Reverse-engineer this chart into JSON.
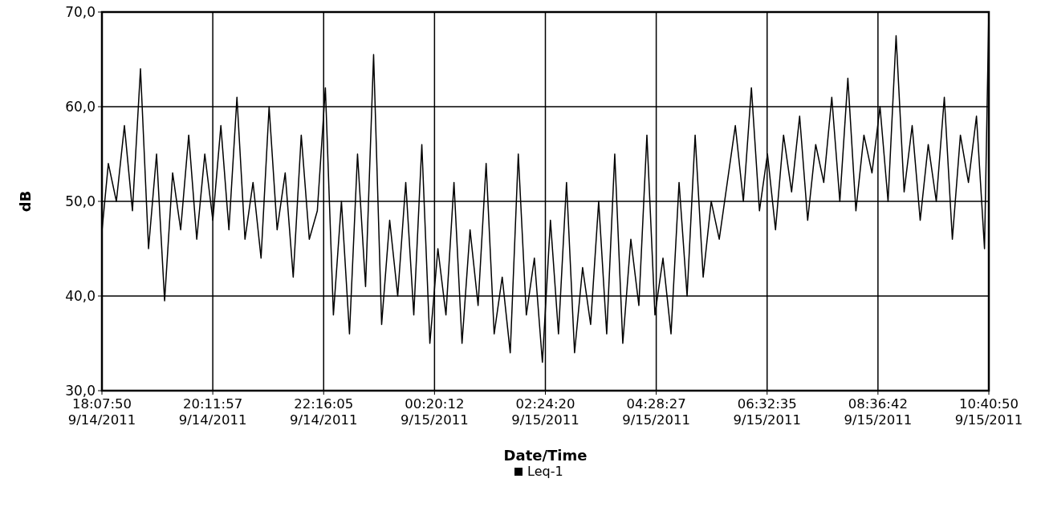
{
  "chart_data": {
    "type": "line",
    "xlabel": "Date/Time",
    "ylabel": "dB",
    "x": [
      "2011-09-14T18:08",
      "2011-09-14T18:15",
      "2011-09-14T18:24",
      "2011-09-14T18:33",
      "2011-09-14T18:42",
      "2011-09-14T18:51",
      "2011-09-14T19:00",
      "2011-09-14T19:09",
      "2011-09-14T19:18",
      "2011-09-14T19:27",
      "2011-09-14T19:36",
      "2011-09-14T19:45",
      "2011-09-14T19:54",
      "2011-09-14T20:03",
      "2011-09-14T20:12",
      "2011-09-14T20:21",
      "2011-09-14T20:30",
      "2011-09-14T20:39",
      "2011-09-14T20:48",
      "2011-09-14T20:57",
      "2011-09-14T21:06",
      "2011-09-14T21:15",
      "2011-09-14T21:24",
      "2011-09-14T21:33",
      "2011-09-14T21:42",
      "2011-09-14T21:51",
      "2011-09-14T22:00",
      "2011-09-14T22:09",
      "2011-09-14T22:18",
      "2011-09-14T22:27",
      "2011-09-14T22:36",
      "2011-09-14T22:45",
      "2011-09-14T22:54",
      "2011-09-14T23:03",
      "2011-09-14T23:12",
      "2011-09-14T23:21",
      "2011-09-14T23:30",
      "2011-09-14T23:39",
      "2011-09-14T23:48",
      "2011-09-14T23:57",
      "2011-09-15T00:06",
      "2011-09-15T00:15",
      "2011-09-15T00:24",
      "2011-09-15T00:33",
      "2011-09-15T00:42",
      "2011-09-15T00:51",
      "2011-09-15T01:00",
      "2011-09-15T01:09",
      "2011-09-15T01:18",
      "2011-09-15T01:27",
      "2011-09-15T01:36",
      "2011-09-15T01:45",
      "2011-09-15T01:54",
      "2011-09-15T02:03",
      "2011-09-15T02:12",
      "2011-09-15T02:21",
      "2011-09-15T02:30",
      "2011-09-15T02:39",
      "2011-09-15T02:48",
      "2011-09-15T02:57",
      "2011-09-15T03:06",
      "2011-09-15T03:15",
      "2011-09-15T03:24",
      "2011-09-15T03:33",
      "2011-09-15T03:42",
      "2011-09-15T03:51",
      "2011-09-15T04:00",
      "2011-09-15T04:09",
      "2011-09-15T04:18",
      "2011-09-15T04:27",
      "2011-09-15T04:36",
      "2011-09-15T04:45",
      "2011-09-15T04:54",
      "2011-09-15T05:03",
      "2011-09-15T05:12",
      "2011-09-15T05:21",
      "2011-09-15T05:30",
      "2011-09-15T05:39",
      "2011-09-15T05:48",
      "2011-09-15T05:57",
      "2011-09-15T06:06",
      "2011-09-15T06:15",
      "2011-09-15T06:24",
      "2011-09-15T06:33",
      "2011-09-15T06:42",
      "2011-09-15T06:51",
      "2011-09-15T07:00",
      "2011-09-15T07:09",
      "2011-09-15T07:18",
      "2011-09-15T07:27",
      "2011-09-15T07:36",
      "2011-09-15T07:45",
      "2011-09-15T07:54",
      "2011-09-15T08:03",
      "2011-09-15T08:12",
      "2011-09-15T08:21",
      "2011-09-15T08:30",
      "2011-09-15T08:39",
      "2011-09-15T08:48",
      "2011-09-15T08:57",
      "2011-09-15T09:06",
      "2011-09-15T09:15",
      "2011-09-15T09:24",
      "2011-09-15T09:33",
      "2011-09-15T09:42",
      "2011-09-15T09:51",
      "2011-09-15T10:00",
      "2011-09-15T10:09",
      "2011-09-15T10:18",
      "2011-09-15T10:27",
      "2011-09-15T10:36",
      "2011-09-15T10:40:50"
    ],
    "series": [
      {
        "name": "Leq-1",
        "color": "#000000",
        "values": [
          47,
          54,
          50,
          58,
          49,
          64,
          45,
          55,
          39.5,
          53,
          47,
          57,
          46,
          55,
          48,
          58,
          47,
          61,
          46,
          52,
          44,
          60,
          47,
          53,
          42,
          57,
          46,
          49,
          62,
          38,
          50,
          36,
          55,
          41,
          65.5,
          37,
          48,
          40,
          52,
          38,
          56,
          35,
          45,
          38,
          52,
          35,
          47,
          39,
          54,
          36,
          42,
          34,
          55,
          38,
          44,
          33,
          48,
          36,
          52,
          34,
          43,
          37,
          50,
          36,
          55,
          35,
          46,
          39,
          57,
          38,
          44,
          36,
          52,
          40,
          57,
          42,
          50,
          46,
          52,
          58,
          50,
          62,
          49,
          55,
          47,
          57,
          51,
          59,
          48,
          56,
          52,
          61,
          50,
          63,
          49,
          57,
          53,
          60,
          50,
          67.5,
          51,
          58,
          48,
          56,
          50,
          61,
          46,
          57,
          52,
          59,
          45,
          70
        ]
      }
    ],
    "xlim": [
      "2011-09-14T18:07:50",
      "2011-09-15T10:40:50"
    ],
    "xticks": [
      {
        "value": "2011-09-14T18:07:50",
        "label": "18:07:50 9/14/2011"
      },
      {
        "value": "2011-09-14T20:11:57",
        "label": "20:11:57 9/14/2011"
      },
      {
        "value": "2011-09-14T22:16:05",
        "label": "22:16:05 9/14/2011"
      },
      {
        "value": "2011-09-15T00:20:12",
        "label": "00:20:12 9/15/2011"
      },
      {
        "value": "2011-09-15T02:24:20",
        "label": "02:24:20 9/15/2011"
      },
      {
        "value": "2011-09-15T04:28:27",
        "label": "04:28:27 9/15/2011"
      },
      {
        "value": "2011-09-15T06:32:35",
        "label": "06:32:35 9/15/2011"
      },
      {
        "value": "2011-09-15T08:36:42",
        "label": "08:36:42 9/15/2011"
      },
      {
        "value": "2011-09-15T10:40:50",
        "label": "10:40:50 9/15/2011"
      }
    ],
    "ylim": [
      30,
      70
    ],
    "yticks": [
      {
        "value": 30,
        "label": "30,0"
      },
      {
        "value": 40,
        "label": "40,0"
      },
      {
        "value": 50,
        "label": "50,0"
      },
      {
        "value": 60,
        "label": "60,0"
      },
      {
        "value": 70,
        "label": "70,0"
      }
    ],
    "grid": true,
    "legend": "bottom",
    "marker": "none",
    "line_style": "solid"
  }
}
